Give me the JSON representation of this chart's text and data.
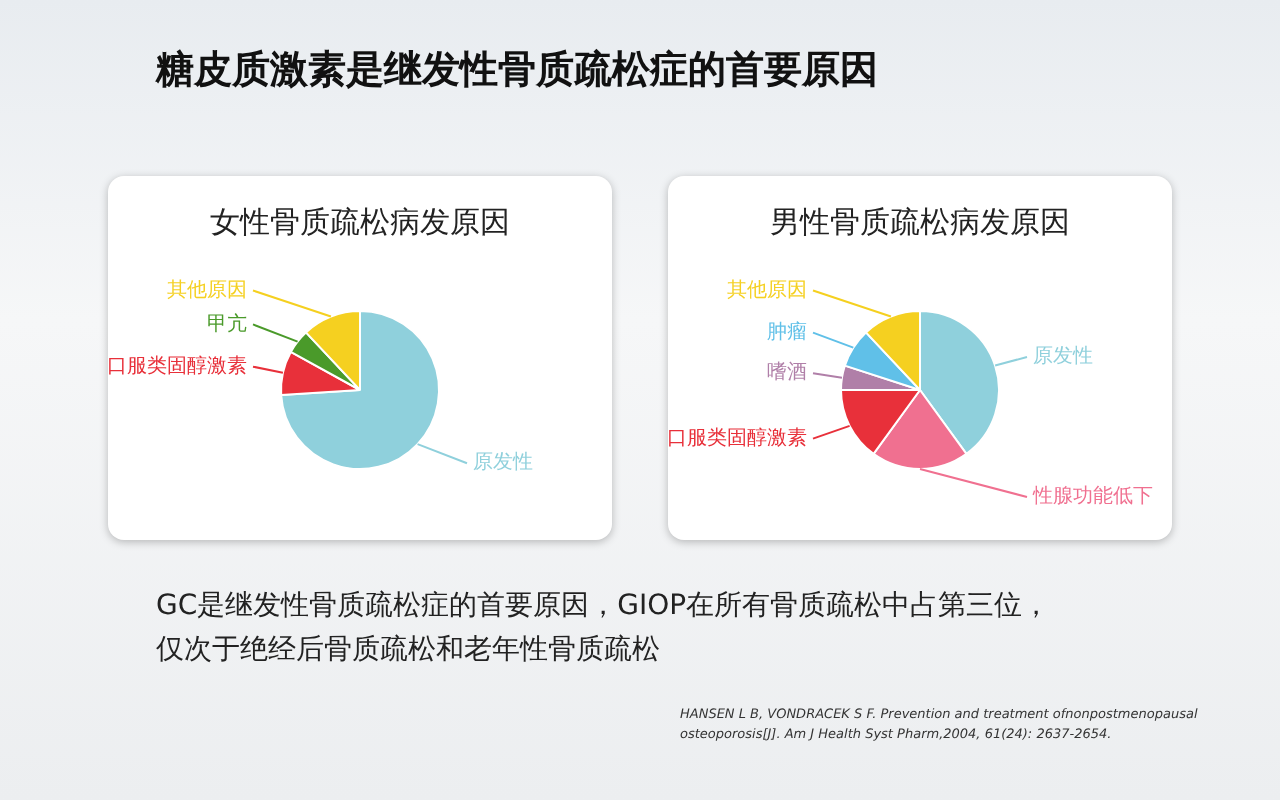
{
  "chart_data": [
    {
      "type": "other",
      "title": "糖皮质激素是继发性骨质疏松症的首要原因"
    },
    {
      "type": "pie",
      "title": "女性骨质疏松病发原因",
      "categories": [
        "原发性",
        "口服类固醇激素",
        "甲亢",
        "其他原因"
      ],
      "values": [
        74,
        9,
        5,
        12
      ],
      "colors": [
        "#8fd0dc",
        "#e8303a",
        "#4a9a2a",
        "#f5d020"
      ]
    },
    {
      "type": "pie",
      "title": "男性骨质疏松病发原因",
      "categories": [
        "原发性",
        "性腺功能低下",
        "口服类固醇激素",
        "嗜酒",
        "肿瘤",
        "其他原因"
      ],
      "values": [
        40,
        20,
        15,
        5,
        8,
        12
      ],
      "colors": [
        "#8fd0dc",
        "#f07090",
        "#e8303a",
        "#b07fa8",
        "#60c0e8",
        "#f5d020"
      ]
    },
    {
      "type": "other",
      "annotations": [
        "GC是继发性骨质疏松症的首要原因，GIOP在所有骨质疏松中占第三位，",
        "仅次于绝经后骨质疏松和老年性骨质疏松",
        "HANSEN L B, VONDRACEK S F. Prevention and treatment ofnonpostmenopausal osteoporosis[J]. Am J Health Syst Pharm,2004, 61(24): 2637-2654."
      ]
    }
  ]
}
